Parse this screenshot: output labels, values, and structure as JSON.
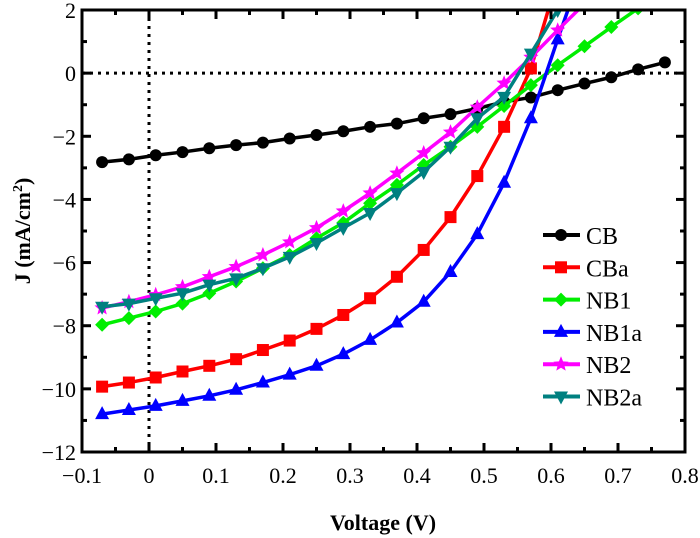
{
  "chart_data": {
    "type": "line",
    "xlabel": "Voltage (V)",
    "ylabel_main": "J (mA/cm",
    "ylabel_sup": "2",
    "ylabel_end": ")",
    "xlim": [
      -0.1,
      0.8
    ],
    "ylim": [
      -12,
      2
    ],
    "xticks": [
      -0.1,
      0,
      0.1,
      0.2,
      0.3,
      0.4,
      0.5,
      0.6,
      0.7,
      0.8
    ],
    "xtick_labels": [
      "−0.1",
      "0",
      "0.1",
      "0.2",
      "0.3",
      "0.4",
      "0.5",
      "0.6",
      "0.7",
      "0.8"
    ],
    "yticks": [
      -12,
      -10,
      -8,
      -6,
      -4,
      -2,
      0,
      2
    ],
    "ytick_labels": [
      "−12",
      "−10",
      "−8",
      "−6",
      "−4",
      "−2",
      "0",
      "2"
    ],
    "grid": false,
    "reference_lines": [
      "x=0 dotted",
      "y=0 dotted"
    ],
    "legend_position": "right",
    "x": [
      -0.07,
      -0.03,
      0.01,
      0.05,
      0.09,
      0.13,
      0.17,
      0.21,
      0.25,
      0.29,
      0.33,
      0.37,
      0.41,
      0.45,
      0.49,
      0.53,
      0.57,
      0.61,
      0.65,
      0.69,
      0.73,
      0.77
    ],
    "series": [
      {
        "name": "CB",
        "color": "#000000",
        "marker": "circle",
        "values": [
          -2.82,
          -2.73,
          -2.6,
          -2.5,
          -2.38,
          -2.28,
          -2.2,
          -2.07,
          -1.96,
          -1.84,
          -1.7,
          -1.6,
          -1.43,
          -1.3,
          -1.12,
          -0.91,
          -0.77,
          -0.54,
          -0.33,
          -0.13,
          0.12,
          0.34
        ]
      },
      {
        "name": "CBa",
        "color": "#ff0000",
        "marker": "square",
        "values": [
          -9.93,
          -9.8,
          -9.64,
          -9.45,
          -9.27,
          -9.06,
          -8.77,
          -8.47,
          -8.1,
          -7.66,
          -7.13,
          -6.45,
          -5.6,
          -4.56,
          -3.26,
          -1.7,
          0.15,
          3.0,
          null,
          null,
          null,
          null
        ]
      },
      {
        "name": "NB1",
        "color": "#00ee00",
        "marker": "diamond",
        "values": [
          -7.97,
          -7.76,
          -7.55,
          -7.3,
          -6.97,
          -6.6,
          -6.18,
          -5.76,
          -5.23,
          -4.74,
          -4.12,
          -3.54,
          -2.91,
          -2.33,
          -1.7,
          -1.04,
          -0.38,
          0.25,
          0.85,
          1.46,
          2.05,
          null
        ]
      },
      {
        "name": "NB1a",
        "color": "#0000ff",
        "marker": "triangle-up",
        "values": [
          -10.8,
          -10.67,
          -10.54,
          -10.38,
          -10.22,
          -10.03,
          -9.8,
          -9.55,
          -9.27,
          -8.9,
          -8.45,
          -7.9,
          -7.24,
          -6.3,
          -5.1,
          -3.47,
          -1.43,
          1.07,
          3.5,
          null,
          null,
          null
        ]
      },
      {
        "name": "NB2",
        "color": "#ff00ff",
        "marker": "star",
        "values": [
          -7.44,
          -7.24,
          -7.02,
          -6.77,
          -6.45,
          -6.13,
          -5.76,
          -5.35,
          -4.9,
          -4.37,
          -3.8,
          -3.17,
          -2.53,
          -1.87,
          -1.08,
          -0.32,
          0.5,
          1.36,
          2.2,
          null,
          null,
          null
        ]
      },
      {
        "name": "NB2a",
        "color": "#008080",
        "marker": "triangle-down",
        "values": [
          -7.4,
          -7.3,
          -7.13,
          -6.97,
          -6.7,
          -6.5,
          -6.18,
          -5.82,
          -5.38,
          -4.9,
          -4.43,
          -3.8,
          -3.13,
          -2.33,
          -1.43,
          -0.75,
          0.62,
          2.0,
          null,
          null,
          null,
          null
        ]
      }
    ]
  }
}
